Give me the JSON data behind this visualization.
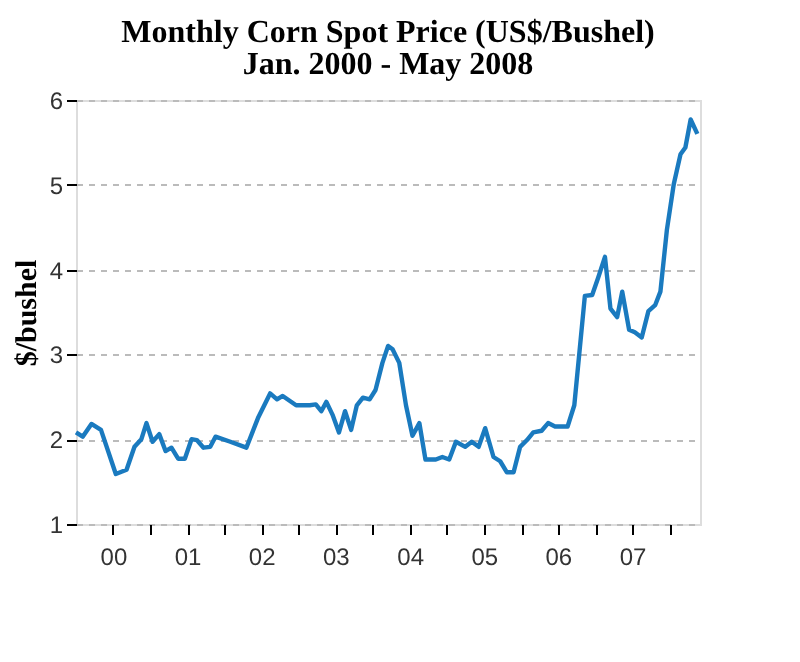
{
  "chart_data": {
    "type": "line",
    "title": "Monthly Corn Spot Price (US$/Bushel)",
    "subtitle": "Jan. 2000 - May 2008",
    "ylabel": "$/bushel",
    "x": [
      "2000-01-01",
      "2000-02-03",
      "2000-03-17",
      "2000-05-03",
      "2000-07-15",
      "2000-09-06",
      "2000-10-15",
      "2000-11-18",
      "2000-12-13",
      "2001-01-12",
      "2001-02-14",
      "2001-03-17",
      "2001-04-15",
      "2001-05-18",
      "2001-06-20",
      "2001-07-23",
      "2001-08-18",
      "2001-09-20",
      "2001-10-23",
      "2001-11-18",
      "2002-01-30",
      "2002-04-19",
      "2002-06-17",
      "2002-08-14",
      "2002-09-17",
      "2002-10-15",
      "2002-12-20",
      "2003-02-25",
      "2003-03-27",
      "2003-04-23",
      "2003-05-18",
      "2003-06-17",
      "2003-07-19",
      "2003-08-18",
      "2003-09-17",
      "2003-10-15",
      "2003-11-14",
      "2003-12-17",
      "2004-01-15",
      "2004-02-18",
      "2004-03-17",
      "2004-04-08",
      "2004-05-11",
      "2004-06-13",
      "2004-07-15",
      "2004-08-18",
      "2004-09-17",
      "2004-11-07",
      "2004-12-09",
      "2005-01-12",
      "2005-02-14",
      "2005-04-01",
      "2005-05-03",
      "2005-06-06",
      "2005-07-08",
      "2005-08-18",
      "2005-09-20",
      "2005-10-23",
      "2005-11-25",
      "2005-12-27",
      "2006-01-30",
      "2006-03-02",
      "2006-04-12",
      "2006-05-14",
      "2006-06-17",
      "2006-07-15",
      "2006-08-18",
      "2006-09-20",
      "2006-11-11",
      "2006-12-17",
      "2007-01-15",
      "2007-02-18",
      "2007-03-17",
      "2007-04-19",
      "2007-05-14",
      "2007-06-17",
      "2007-07-15",
      "2007-08-18",
      "2007-09-20",
      "2007-10-23",
      "2007-11-18",
      "2007-12-20",
      "2008-01-23",
      "2008-02-25",
      "2008-03-20",
      "2008-04-15",
      "2008-05-18"
    ],
    "series": [
      {
        "color": "#1a7abf",
        "values": [
          2.08,
          2.03,
          2.18,
          2.11,
          1.59,
          1.64,
          1.91,
          2.0,
          2.19,
          1.97,
          2.06,
          1.86,
          1.9,
          1.77,
          1.77,
          2.0,
          1.99,
          1.9,
          1.91,
          2.03,
          1.97,
          1.9,
          2.26,
          2.54,
          2.47,
          2.51,
          2.4,
          2.4,
          2.41,
          2.33,
          2.44,
          2.29,
          2.08,
          2.33,
          2.11,
          2.4,
          2.49,
          2.47,
          2.58,
          2.9,
          3.1,
          3.06,
          2.9,
          2.4,
          2.04,
          2.19,
          1.76,
          1.76,
          1.79,
          1.76,
          1.97,
          1.91,
          1.97,
          1.91,
          2.13,
          1.79,
          1.74,
          1.61,
          1.61,
          1.91,
          1.99,
          2.08,
          2.1,
          2.19,
          2.15,
          2.15,
          2.15,
          2.4,
          3.69,
          3.7,
          3.9,
          4.15,
          3.54,
          3.44,
          3.74,
          3.29,
          3.26,
          3.2,
          3.51,
          3.58,
          3.74,
          4.47,
          5.01,
          5.36,
          5.44,
          5.77,
          5.6
        ]
      }
    ],
    "xlim": [
      "2000-01-01",
      "2008-05-31"
    ],
    "xticks": [
      {
        "value": "2000-07-01",
        "label": "00"
      },
      {
        "value": "2001-07-01",
        "label": "01"
      },
      {
        "value": "2002-07-01",
        "label": "02"
      },
      {
        "value": "2003-07-01",
        "label": "03"
      },
      {
        "value": "2004-07-01",
        "label": "04"
      },
      {
        "value": "2005-07-01",
        "label": "05"
      },
      {
        "value": "2006-07-01",
        "label": "06"
      },
      {
        "value": "2007-07-01",
        "label": "07"
      },
      {
        "value": "2001-01-01",
        "label": null
      },
      {
        "value": "2002-01-01",
        "label": null
      },
      {
        "value": "2003-01-01",
        "label": null
      },
      {
        "value": "2004-01-01",
        "label": null
      },
      {
        "value": "2005-01-01",
        "label": null
      },
      {
        "value": "2006-01-01",
        "label": null
      },
      {
        "value": "2007-01-01",
        "label": null
      },
      {
        "value": "2008-01-01",
        "label": null
      }
    ],
    "ylim": [
      1,
      6
    ],
    "yticks": [
      1,
      2,
      3,
      4,
      5,
      6
    ],
    "grid": "y",
    "marker": "none",
    "line_style": "solid"
  }
}
